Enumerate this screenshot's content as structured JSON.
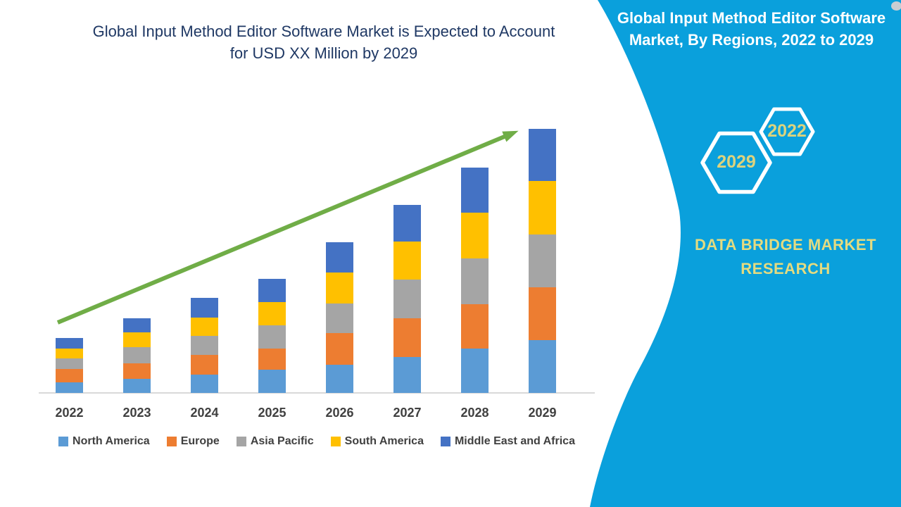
{
  "header": {
    "title_line1": "Global Input Method Editor Software Market is Expected to Account",
    "title_line2": "for USD XX Million by 2029",
    "color": "#1F3864"
  },
  "chart_data": {
    "type": "bar",
    "stacked": true,
    "title": "Global Input Method Editor Software Market is Expected to Account for USD XX Million by 2029",
    "xlabel": "",
    "ylabel": "",
    "units": "relative estimate (y-axis unlabeled, values shown as USD XX Million)",
    "ylim": [
      0,
      400
    ],
    "grid": false,
    "legend_position": "bottom",
    "categories": [
      "2022",
      "2023",
      "2024",
      "2025",
      "2026",
      "2027",
      "2028",
      "2029"
    ],
    "series": [
      {
        "name": "North America",
        "color": "#5B9BD5",
        "values": [
          15,
          20,
          26,
          33,
          40,
          51,
          63,
          75
        ]
      },
      {
        "name": "Europe",
        "color": "#ED7D31",
        "values": [
          19,
          22,
          28,
          30,
          45,
          55,
          63,
          75
        ]
      },
      {
        "name": "Asia Pacific",
        "color": "#A5A5A5",
        "values": [
          15,
          23,
          27,
          33,
          42,
          55,
          65,
          75
        ]
      },
      {
        "name": "South America",
        "color": "#FFC000",
        "values": [
          14,
          21,
          26,
          33,
          44,
          54,
          65,
          76
        ]
      },
      {
        "name": "Middle East and Africa",
        "color": "#4472C4",
        "values": [
          15,
          20,
          28,
          33,
          43,
          52,
          64,
          74
        ]
      }
    ],
    "totals": [
      78,
      106,
      135,
      162,
      214,
      267,
      320,
      375
    ],
    "trend_arrow": {
      "color": "#70AD47",
      "from": [
        82,
        458
      ],
      "to": [
        737,
        186
      ]
    },
    "axis_label_color": "#404040",
    "baseline_color": "#D9D9D9"
  },
  "side_panel": {
    "color": "#0AA0DC",
    "title_line1": "Global Input Method Editor Software",
    "title_line2": "Market, By Regions, 2022 to 2029",
    "title_color": "#FFFFFF",
    "hexagon_small_year": "2022",
    "hexagon_large_year": "2029",
    "hex_year_color": "#DCD37E",
    "brand_line1": "DATA BRIDGE MARKET",
    "brand_line2": "RESEARCH",
    "brand_color": "#E4DB80"
  }
}
